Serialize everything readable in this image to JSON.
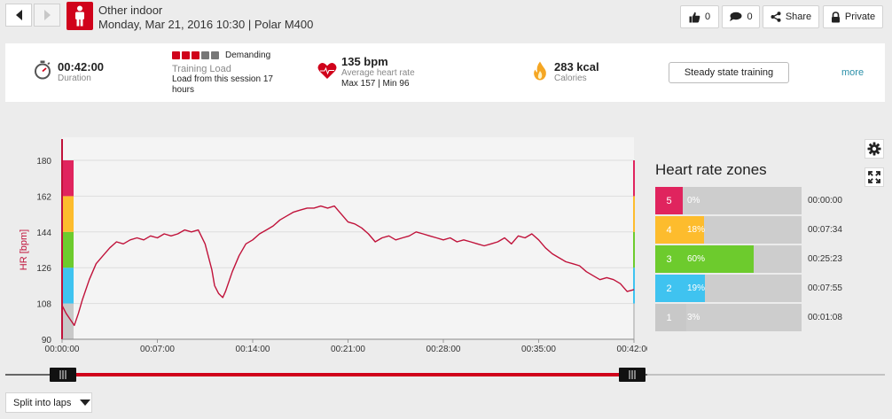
{
  "header": {
    "sport": "Other indoor",
    "date_device": "Monday, Mar 21, 2016 10:30 | Polar M400",
    "like_count": "0",
    "comment_count": "0",
    "share_label": "Share",
    "privacy_label": "Private"
  },
  "summary": {
    "duration_value": "00:42:00",
    "duration_label": "Duration",
    "training_load_level": "Demanding",
    "training_load_label": "Training Load",
    "training_load_text": "Load from this session 17 hours",
    "training_load_boxes_filled": 3,
    "training_load_boxes_total": 5,
    "hr_value": "135 bpm",
    "hr_label": "Average heart rate",
    "hr_maxmin": "Max 157  |  Min 96",
    "calories_value": "283 kcal",
    "calories_label": "Calories",
    "benefit_button": "Steady state training",
    "more_link": "more"
  },
  "colors": {
    "brand_red": "#d0021b",
    "hr_line": "#c0123a",
    "zone5": "#e0245e",
    "zone4": "#fdbc2d",
    "zone3": "#6dcb2d",
    "zone2": "#3fc3f0",
    "zone1": "#c8c8c8"
  },
  "chart_data": {
    "type": "line",
    "title": "",
    "ylabel": "HR [bpm]",
    "xlabel": "",
    "ylim": [
      90,
      180
    ],
    "y_ticks": [
      "180",
      "162",
      "144",
      "126",
      "108",
      "90"
    ],
    "x_ticks": [
      "00:00:00",
      "00:07:00",
      "00:14:00",
      "00:21:00",
      "00:28:00",
      "00:35:00",
      "00:42:00"
    ],
    "xlim_min": [
      0,
      42
    ],
    "grid": true,
    "series": [
      {
        "x": [
          0,
          0.3,
          0.6,
          0.9,
          1.2,
          1.5,
          2,
          2.5,
          3,
          3.5,
          4,
          4.5,
          5,
          5.5,
          6,
          6.5,
          7,
          7.5,
          8,
          8.5,
          9,
          9.5,
          10,
          10.5,
          11,
          11.2,
          11.5,
          11.8,
          12,
          12.5,
          13,
          13.5,
          14,
          14.5,
          15,
          15.5,
          16,
          16.5,
          17,
          17.5,
          18,
          18.5,
          19,
          19.5,
          20,
          20.5,
          21,
          21.5,
          22,
          22.5,
          23,
          23.5,
          24,
          24.5,
          25,
          25.5,
          26,
          26.5,
          27,
          27.5,
          28,
          28.5,
          29,
          29.5,
          30,
          30.5,
          31,
          31.5,
          32,
          32.5,
          33,
          33.5,
          34,
          34.5,
          35,
          35.5,
          36,
          36.5,
          37,
          37.5,
          38,
          38.5,
          39,
          39.5,
          40,
          40.5,
          41,
          41.5,
          42
        ],
        "y": [
          107,
          103,
          100,
          97,
          103,
          110,
          120,
          128,
          132,
          136,
          139,
          138,
          140,
          141,
          140,
          142,
          141,
          143,
          142,
          143,
          145,
          144,
          145,
          138,
          125,
          117,
          113,
          111,
          114,
          124,
          132,
          138,
          140,
          143,
          145,
          147,
          150,
          152,
          154,
          155,
          156,
          156,
          157,
          156,
          157,
          153,
          149,
          148,
          146,
          143,
          139,
          141,
          142,
          140,
          141,
          142,
          144,
          143,
          142,
          141,
          140,
          141,
          139,
          140,
          139,
          138,
          137,
          138,
          139,
          141,
          138,
          142,
          141,
          143,
          140,
          136,
          133,
          131,
          129,
          128,
          127,
          124,
          122,
          120,
          121,
          120,
          118,
          114,
          115
        ]
      }
    ]
  },
  "zones": {
    "title": "Heart rate zones",
    "rows": [
      {
        "zone": "5",
        "pct_label": "0%",
        "pct": 0,
        "time": "00:00:00"
      },
      {
        "zone": "4",
        "pct_label": "18%",
        "pct": 18,
        "time": "00:07:34"
      },
      {
        "zone": "3",
        "pct_label": "60%",
        "pct": 60,
        "time": "00:25:23"
      },
      {
        "zone": "2",
        "pct_label": "19%",
        "pct": 19,
        "time": "00:07:55"
      },
      {
        "zone": "1",
        "pct_label": "3%",
        "pct": 3,
        "time": "00:01:08"
      }
    ]
  },
  "footer": {
    "split_label": "Split into laps"
  }
}
